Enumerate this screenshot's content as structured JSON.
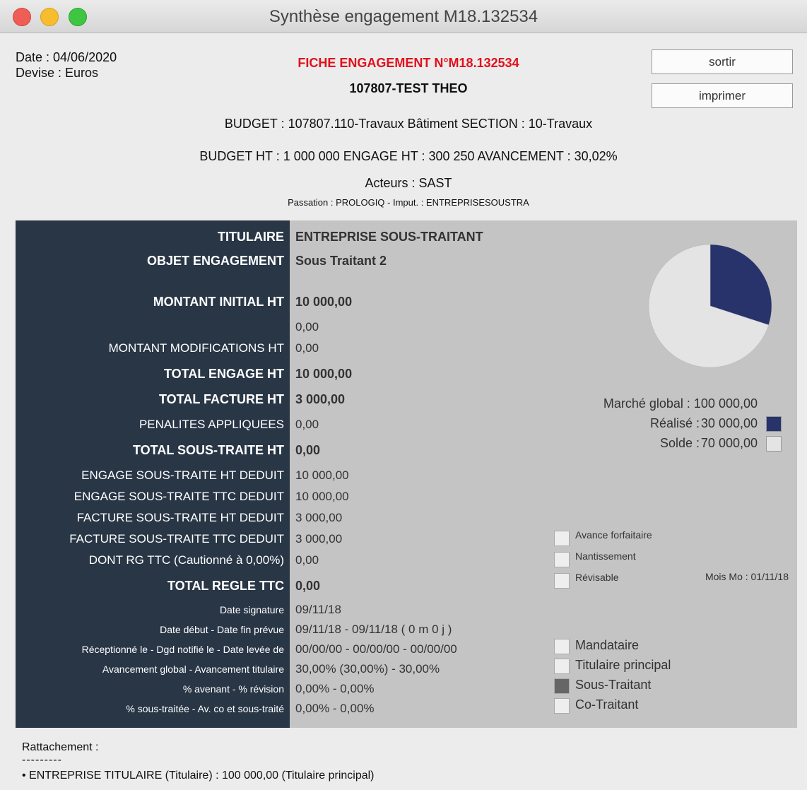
{
  "window": {
    "title": "Synthèse engagement M18.132534"
  },
  "header": {
    "date": "Date : 04/06/2020",
    "devise": "Devise : Euros",
    "fiche": "FICHE ENGAGEMENT N°M18.132534",
    "name": "107807-TEST THEO",
    "budget": "BUDGET : 107807.110-Travaux Bâtiment SECTION : 10-Travaux",
    "budget_ht": "BUDGET HT : 1 000 000 ENGAGE HT : 300 250 AVANCEMENT : 30,02%",
    "acteurs": "Acteurs : SAST",
    "passation": "Passation : PROLOGIQ - Imput. : ENTREPRISESOUSTRA"
  },
  "buttons": [
    "sortir",
    "imprimer"
  ],
  "rows": [
    {
      "label": "TITULAIRE",
      "value": "ENTREPRISE SOUS-TRAITANT"
    },
    {
      "label": "OBJET ENGAGEMENT",
      "value": "Sous Traitant 2"
    },
    {
      "label": "MONTANT INITIAL HT",
      "value": "10 000,00"
    },
    {
      "value": "0,00"
    },
    {
      "label": "MONTANT MODIFICATIONS HT",
      "value": "0,00"
    },
    {
      "label": "TOTAL ENGAGE HT",
      "value": "10 000,00"
    },
    {
      "label": "TOTAL FACTURE HT",
      "value": "3 000,00"
    },
    {
      "label": "PENALITES APPLIQUEES",
      "value": "0,00"
    },
    {
      "label": "TOTAL SOUS-TRAITE HT",
      "value": "0,00"
    },
    {
      "label": "ENGAGE SOUS-TRAITE HT DEDUIT",
      "value": "10 000,00"
    },
    {
      "label": "ENGAGE SOUS-TRAITE TTC DEDUIT",
      "value": "10 000,00"
    },
    {
      "label": "FACTURE SOUS-TRAITE HT DEDUIT",
      "value": "3 000,00"
    },
    {
      "label": "FACTURE SOUS-TRAITE TTC DEDUIT",
      "value": "3 000,00"
    },
    {
      "label": "DONT RG TTC (Cautionné à 0,00%)",
      "value": "0,00"
    },
    {
      "label": "TOTAL REGLE TTC",
      "value": "0,00"
    },
    {
      "label": "Date signature",
      "value": "09/11/18"
    },
    {
      "label": "Date début - Date fin prévue",
      "value": "09/11/18 - 09/11/18 ( 0 m 0 j )"
    },
    {
      "label": "Réceptionné le - Dgd notifié le - Date levée de",
      "value": "00/00/00 - 00/00/00 - 00/00/00"
    },
    {
      "label": "Avancement global - Avancement titulaire",
      "value": "30,00% (30,00%) - 30,00%"
    },
    {
      "label": "% avenant - % révision",
      "value": "0,00% - 0,00%"
    },
    {
      "label": "% sous-traitée - Av. co et sous-traité",
      "value": "0,00% - 0,00%"
    }
  ],
  "pie": {
    "total_label": "Marché global : 100 000,00",
    "labels": [
      "Réalisé :",
      "Solde :"
    ],
    "values": [
      30000,
      70000
    ],
    "value_labels": [
      "30 000,00",
      "70 000,00"
    ],
    "colors": [
      "#27336a",
      "#e4e4e4"
    ]
  },
  "options": [
    {
      "label": "Avance forfaitaire",
      "checked": false
    },
    {
      "label": "Nantissement",
      "checked": false
    },
    {
      "label": "Révisable",
      "checked": false
    }
  ],
  "mois_mo": "Mois Mo : 01/11/18",
  "roles": [
    {
      "label": "Mandataire",
      "checked": false
    },
    {
      "label": "Titulaire principal",
      "checked": false
    },
    {
      "label": "Sous-Traitant",
      "checked": true
    },
    {
      "label": "Co-Traitant",
      "checked": false
    }
  ],
  "footer": {
    "title": "Rattachement :",
    "rule": "---------",
    "item": "• ENTREPRISE TITULAIRE (Titulaire) : 100 000,00 (Titulaire principal)"
  }
}
